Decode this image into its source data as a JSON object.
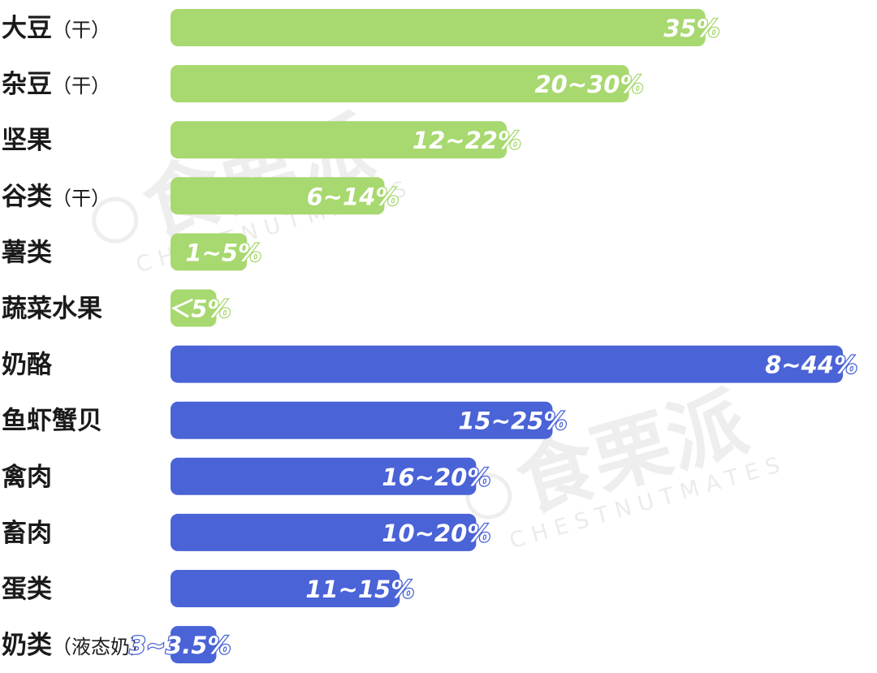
{
  "chart_data": {
    "type": "bar",
    "orientation": "horizontal",
    "grid": false,
    "legend": "none",
    "xlim": [
      0,
      44
    ],
    "colors": {
      "plant": "#a8d870",
      "animal": "#4a63d6"
    },
    "categories": [
      {
        "name": "大豆",
        "note": "（干）",
        "value": 35,
        "label": "35%",
        "group": "plant"
      },
      {
        "name": "杂豆",
        "note": "（干）",
        "value": 30,
        "label": "20~30%",
        "group": "plant"
      },
      {
        "name": "坚果",
        "note": "",
        "value": 22,
        "label": "12~22%",
        "group": "plant"
      },
      {
        "name": "谷类",
        "note": "（干）",
        "value": 14,
        "label": "6~14%",
        "group": "plant"
      },
      {
        "name": "薯类",
        "note": "",
        "value": 5,
        "label": "1~5%",
        "group": "plant"
      },
      {
        "name": "蔬菜水果",
        "note": "",
        "value": 3,
        "label": "＜5%",
        "group": "plant"
      },
      {
        "name": "奶酪",
        "note": "",
        "value": 44,
        "label": "8~44%",
        "group": "animal"
      },
      {
        "name": "鱼虾蟹贝",
        "note": "",
        "value": 25,
        "label": "15~25%",
        "group": "animal"
      },
      {
        "name": "禽肉",
        "note": "",
        "value": 20,
        "label": "16~20%",
        "group": "animal"
      },
      {
        "name": "畜肉",
        "note": "",
        "value": 20,
        "label": "10~20%",
        "group": "animal"
      },
      {
        "name": "蛋类",
        "note": "",
        "value": 15,
        "label": "11~15%",
        "group": "animal"
      },
      {
        "name": "奶类",
        "note": "（液态奶）",
        "value": 3,
        "label": "3~3.5%",
        "group": "animal"
      }
    ]
  },
  "watermark": {
    "text": "食栗派",
    "subtext": "CHESTNUTMATES"
  }
}
